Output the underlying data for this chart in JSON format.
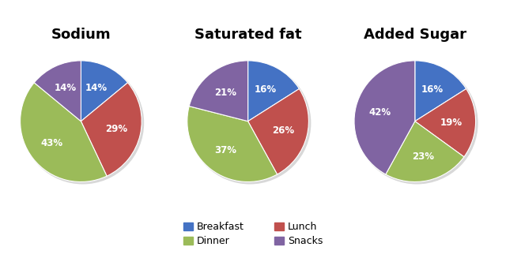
{
  "charts": [
    {
      "title": "Sodium",
      "values": [
        14,
        29,
        43,
        14
      ],
      "pct_labels": [
        "14%",
        "29%",
        "43%",
        "14%"
      ],
      "startangle": 90,
      "order": [
        0,
        1,
        2,
        3
      ]
    },
    {
      "title": "Saturated fat",
      "values": [
        16,
        26,
        37,
        21
      ],
      "pct_labels": [
        "16%",
        "26%",
        "37%",
        "21%"
      ],
      "startangle": 90,
      "order": [
        0,
        1,
        2,
        3
      ]
    },
    {
      "title": "Added Sugar",
      "values": [
        16,
        19,
        23,
        42
      ],
      "pct_labels": [
        "16%",
        "19%",
        "23%",
        "42%"
      ],
      "startangle": 90,
      "order": [
        0,
        1,
        2,
        3
      ]
    }
  ],
  "colors": [
    "#4472C4",
    "#C0504D",
    "#9BBB59",
    "#8064A2"
  ],
  "legend_labels": [
    "Breakfast",
    "Dinner",
    "Lunch",
    "Snacks"
  ],
  "legend_colors_order": [
    0,
    2,
    1,
    3
  ],
  "title_fontsize": 13,
  "label_fontsize": 8.5,
  "figsize": [
    6.4,
    3.27
  ],
  "dpi": 100,
  "bg_color": "#ffffff",
  "shadow_color": "#d8d8d8"
}
